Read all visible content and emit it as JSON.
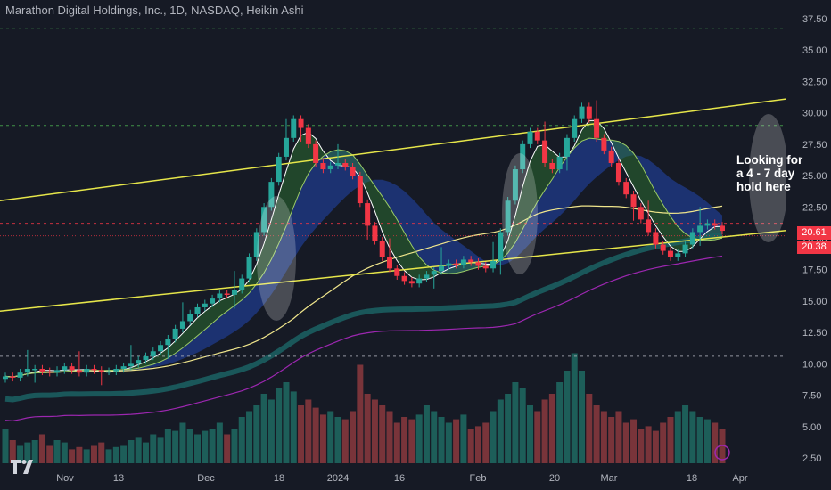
{
  "header": {
    "title": "Marathon Digital Holdings, Inc., 1D, NASDAQ, Heikin Ashi"
  },
  "annotation": {
    "lines": [
      "Looking for",
      "a 4 - 7 day",
      "hold here"
    ]
  },
  "price_tags": [
    {
      "value": "20.61",
      "color": "#f23645"
    },
    {
      "value": "20.38",
      "color": "#f23645"
    }
  ],
  "colors": {
    "background": "#161a25",
    "up": "#26a69a",
    "down": "#f23645",
    "trendline": "#e6e64a",
    "ribbon_green": "#2e7d32",
    "ribbon_red": "#8b2e33",
    "ribbon_blue": "#2962ff",
    "ma_purple": "#9c27b0",
    "ma_teal": "#006064",
    "grid": "#2a2e39"
  },
  "chart_data": {
    "type": "candlestick",
    "y_axis": {
      "min": 2.5,
      "max": 37.5,
      "ticks": [
        "37.50",
        "35.00",
        "32.50",
        "30.00",
        "27.50",
        "25.00",
        "22.50",
        "20.00",
        "17.50",
        "15.00",
        "12.50",
        "10.00",
        "7.50",
        "5.00",
        "2.50"
      ]
    },
    "x_axis": {
      "ticks": [
        "Nov",
        "13",
        "Dec",
        "18",
        "2024",
        "16",
        "Feb",
        "20",
        "Mar",
        "18",
        "Apr"
      ]
    },
    "horizontal_levels": [
      36.7,
      29.0,
      21.2,
      10.6
    ],
    "last_price": 20.61,
    "ohlc_heikin_ashi_close_estimates": [
      9.0,
      8.9,
      9.3,
      9.6,
      9.6,
      9.4,
      9.3,
      9.5,
      9.8,
      9.5,
      9.3,
      9.6,
      9.5,
      9.4,
      9.4,
      9.6,
      9.8,
      10.0,
      10.3,
      10.6,
      11.0,
      11.5,
      12.0,
      12.8,
      13.4,
      14.0,
      14.5,
      14.8,
      15.2,
      15.6,
      15.5,
      15.9,
      16.8,
      18.5,
      20.5,
      22.5,
      24.5,
      26.5,
      28.0,
      29.5,
      28.8,
      27.5,
      26.0,
      25.5,
      25.8,
      26.0,
      25.7,
      25.0,
      22.8,
      21.0,
      19.8,
      18.5,
      17.6,
      17.0,
      16.6,
      16.4,
      16.8,
      17.1,
      17.4,
      17.8,
      18.0,
      17.9,
      18.3,
      18.1,
      17.8,
      17.6,
      18.2,
      20.5,
      23.0,
      25.5,
      27.5,
      28.5,
      27.8,
      26.0,
      25.5,
      26.5,
      28.0,
      29.5,
      30.5,
      29.5,
      28.0,
      27.0,
      26.0,
      24.5,
      23.5,
      22.5,
      21.5,
      20.5,
      19.5,
      19.0,
      18.5,
      18.8,
      19.5,
      20.5,
      21.0,
      21.2,
      21.0,
      20.6
    ],
    "volume": {
      "scale_ticks": [
        "10.00",
        "7.50",
        "5.00",
        "2.50"
      ],
      "values_relative": [
        0.3,
        0.2,
        0.15,
        0.18,
        0.2,
        0.25,
        0.15,
        0.2,
        0.18,
        0.12,
        0.14,
        0.12,
        0.15,
        0.18,
        0.12,
        0.14,
        0.15,
        0.2,
        0.22,
        0.18,
        0.25,
        0.22,
        0.3,
        0.28,
        0.35,
        0.3,
        0.25,
        0.28,
        0.3,
        0.35,
        0.25,
        0.3,
        0.4,
        0.45,
        0.5,
        0.6,
        0.55,
        0.65,
        0.7,
        0.62,
        0.5,
        0.55,
        0.48,
        0.42,
        0.45,
        0.4,
        0.38,
        0.45,
        0.85,
        0.6,
        0.55,
        0.5,
        0.45,
        0.35,
        0.4,
        0.38,
        0.42,
        0.5,
        0.45,
        0.4,
        0.35,
        0.38,
        0.42,
        0.3,
        0.32,
        0.35,
        0.45,
        0.55,
        0.6,
        0.7,
        0.65,
        0.5,
        0.45,
        0.55,
        0.6,
        0.7,
        0.8,
        0.95,
        0.8,
        0.6,
        0.5,
        0.45,
        0.4,
        0.45,
        0.35,
        0.38,
        0.3,
        0.32,
        0.28,
        0.35,
        0.4,
        0.45,
        0.5,
        0.45,
        0.4,
        0.38,
        0.35,
        0.3
      ]
    }
  }
}
